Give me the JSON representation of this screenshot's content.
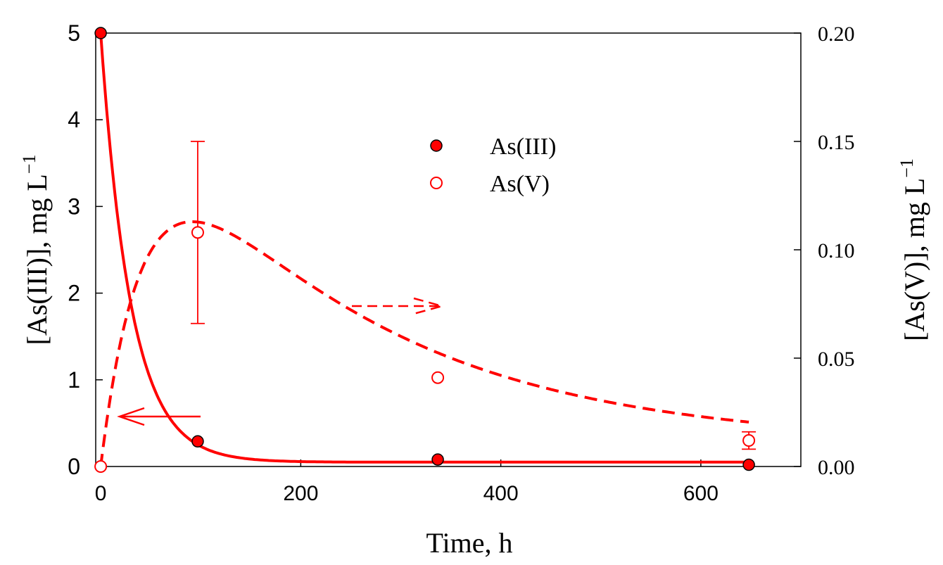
{
  "chart_data": {
    "type": "scatter",
    "xlabel": "Time, h",
    "ylabel_left": "[As(III)], mg L",
    "ylabel_left_sup": "−1",
    "ylabel_right": "[As(V)], mg L",
    "ylabel_right_sup": "−1",
    "xlim": [
      -5,
      700
    ],
    "ylim_left": [
      0,
      5
    ],
    "ylim_right": [
      0,
      0.2
    ],
    "x_ticks": [
      0,
      200,
      400,
      600
    ],
    "x_tick_labels": [
      "0",
      "200",
      "400",
      "600"
    ],
    "y_left_ticks": [
      0,
      1,
      2,
      3,
      4,
      5
    ],
    "y_left_tick_labels": [
      "0",
      "1",
      "2",
      "3",
      "4",
      "5"
    ],
    "y_right_ticks": [
      0,
      0.05,
      0.1,
      0.15,
      0.2
    ],
    "y_right_tick_labels": [
      "0.00",
      "0.05",
      "0.10",
      "0.15",
      "0.20"
    ],
    "legend_position": "center-top",
    "series": [
      {
        "name": "As(III)",
        "axis": "left",
        "marker": "filled-circle",
        "color": "#ff0000",
        "x": [
          0,
          97,
          337,
          648
        ],
        "y": [
          5.0,
          0.29,
          0.08,
          0.02
        ],
        "fit_line": "solid",
        "fit_model": {
          "type": "exp_decay",
          "y0": 5.0,
          "k": 0.033,
          "c": 0.05
        }
      },
      {
        "name": "As(V)",
        "axis": "right",
        "marker": "open-circle",
        "color": "#ff0000",
        "x": [
          0,
          97,
          337,
          648
        ],
        "y": [
          0.0,
          0.108,
          0.041,
          0.012
        ],
        "error": [
          0,
          0.042,
          0,
          0.004
        ],
        "fit_line": "dashed",
        "fit_model": {
          "type": "bateman",
          "a": 0.194,
          "k1": 0.0227,
          "k2": 0.0045,
          "c": 0.01
        }
      }
    ],
    "annotations": [
      {
        "type": "arrow",
        "direction": "left",
        "points_to_axis": "left",
        "style": "solid"
      },
      {
        "type": "arrow",
        "direction": "right",
        "points_to_axis": "right",
        "style": "dashed"
      }
    ]
  }
}
